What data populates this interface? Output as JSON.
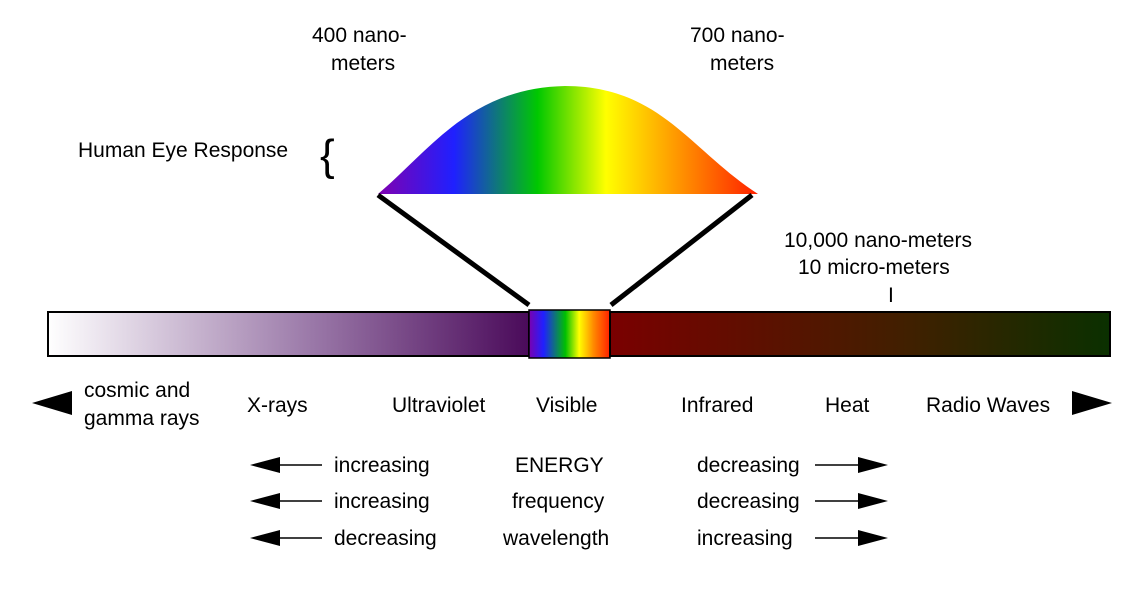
{
  "annotations": {
    "nm400_line1": "400 nano-",
    "nm400_line2": "meters",
    "nm700_line1": "700 nano-",
    "nm700_line2": "meters",
    "eye_response": "Human Eye Response",
    "brace": "{",
    "nm10000_line1": "10,000 nano-meters",
    "nm10000_line2": "10 micro-meters",
    "tick": "I"
  },
  "regions": {
    "cosmic_line1": "cosmic and",
    "cosmic_line2": "gamma rays",
    "xrays": "X-rays",
    "ultraviolet": "Ultraviolet",
    "visible": "Visible",
    "infrared": "Infrared",
    "heat": "Heat",
    "radio": "Radio Waves"
  },
  "trends": [
    {
      "left": "increasing",
      "property": "ENERGY",
      "right": "decreasing"
    },
    {
      "left": "increasing",
      "property": "frequency",
      "right": "decreasing"
    },
    {
      "left": "decreasing",
      "property": "wavelength",
      "right": "increasing"
    }
  ],
  "colors": {
    "uv_end": "#4a0a5a",
    "infrared_start": "#7a0000",
    "radio_end": "#0a3000",
    "spectrum": [
      "#7a00b0",
      "#2020ff",
      "#00c000",
      "#ffff00",
      "#ff8800",
      "#ff2000"
    ]
  }
}
